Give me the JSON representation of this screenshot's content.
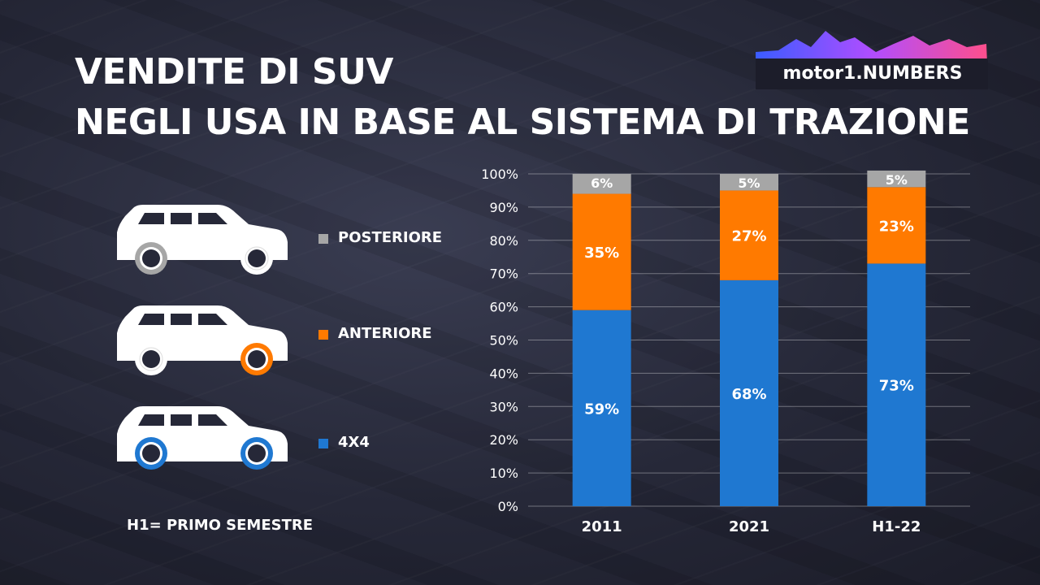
{
  "title": {
    "line1": "VENDITE DI SUV",
    "line2": "NEGLI USA IN BASE AL SISTEMA DI TRAZIONE"
  },
  "logo": {
    "text": "motor1.NUMBERS"
  },
  "legend": {
    "items": [
      {
        "label": "POSTERIORE",
        "color": "#a6a6a6",
        "icon": "suv-rear-wheel-drive-icon"
      },
      {
        "label": "ANTERIORE",
        "color": "#ff7a00",
        "icon": "suv-front-wheel-drive-icon"
      },
      {
        "label": "4X4",
        "color": "#1f78d1",
        "icon": "suv-four-wheel-drive-icon"
      }
    ]
  },
  "footnote": "H1= PRIMO SEMESTRE",
  "chart_data": {
    "type": "bar",
    "stacked": true,
    "categories": [
      "2011",
      "2021",
      "H1-22"
    ],
    "series": [
      {
        "name": "4X4",
        "color": "#1f78d1",
        "values": [
          59,
          68,
          73
        ],
        "labels": [
          "59%",
          "68%",
          "73%"
        ]
      },
      {
        "name": "ANTERIORE",
        "color": "#ff7a00",
        "values": [
          35,
          27,
          23
        ],
        "labels": [
          "35%",
          "27%",
          "23%"
        ]
      },
      {
        "name": "POSTERIORE",
        "color": "#a6a6a6",
        "values": [
          6,
          5,
          5
        ],
        "labels": [
          "6%",
          "5%",
          "5%"
        ]
      }
    ],
    "ylim": [
      0,
      100
    ],
    "yticks": [
      0,
      10,
      20,
      30,
      40,
      50,
      60,
      70,
      80,
      90,
      100
    ],
    "ytick_labels": [
      "0%",
      "10%",
      "20%",
      "30%",
      "40%",
      "50%",
      "60%",
      "70%",
      "80%",
      "90%",
      "100%"
    ],
    "grid": true,
    "legend_position": "left"
  }
}
